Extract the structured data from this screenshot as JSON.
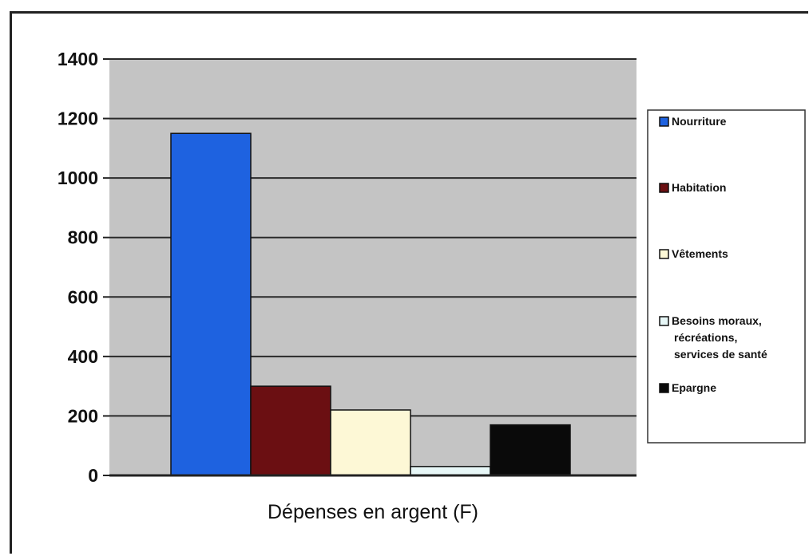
{
  "chart_data": {
    "type": "bar",
    "title": "",
    "xlabel": "Dépenses en argent (F)",
    "ylabel": "",
    "ylim": [
      0,
      1400
    ],
    "yticks": [
      0,
      200,
      400,
      600,
      800,
      1000,
      1200,
      1400
    ],
    "grid": true,
    "legend_position": "right",
    "series": [
      {
        "name": "Nourriture",
        "value": 1150,
        "color": "#1e62e0"
      },
      {
        "name": "Habitation",
        "value": 300,
        "color": "#6b0f12"
      },
      {
        "name": "Vêtements",
        "value": 220,
        "color": "#fdf8d6"
      },
      {
        "name": "Besoins moraux, récréations, services de santé",
        "value": 30,
        "color": "#e7f7f7"
      },
      {
        "name": "Epargne",
        "value": 170,
        "color": "#0a0a0a"
      }
    ],
    "plot_background": "#c4c4c4"
  }
}
